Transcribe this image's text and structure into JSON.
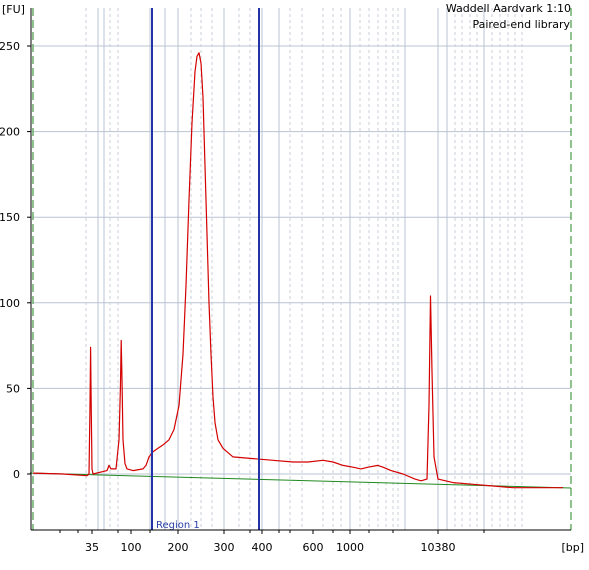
{
  "chart_data": {
    "type": "line",
    "title": "",
    "y_unit": "[FU]",
    "x_unit": "[bp]",
    "annotations": [
      "Waddell Aardvark 1:10",
      "Paired-end library"
    ],
    "ylim": [
      -33,
      258
    ],
    "y_ticks": [
      0,
      50,
      100,
      150,
      200,
      250
    ],
    "x_ticks": [
      {
        "label": "35",
        "bp": 35
      },
      {
        "label": "100",
        "bp": 100
      },
      {
        "label": "200",
        "bp": 200
      },
      {
        "label": "300",
        "bp": 300
      },
      {
        "label": "400",
        "bp": 400
      },
      {
        "label": "600",
        "bp": 600
      },
      {
        "label": "1000",
        "bp": 1000
      },
      {
        "label": "10380",
        "bp": 10380
      }
    ],
    "region": {
      "label": "Region 1",
      "start_bp": 150,
      "end_bp": 400
    },
    "grid": true,
    "colors": {
      "trace": "#d40000",
      "baseline": "#1f8a1f",
      "region": "#2233aa",
      "grid": "#b9c3d4",
      "grid_dashed": "#c8cfd9",
      "ladder_edge": "#1f8a1f"
    },
    "series": [
      {
        "values": [
          [
            0,
            0.5
          ],
          [
            30,
            0
          ],
          [
            54,
            -1
          ],
          [
            56,
            0
          ],
          [
            57,
            40
          ],
          [
            57.6,
            74
          ],
          [
            58.2,
            40
          ],
          [
            59,
            3
          ],
          [
            60,
            0
          ],
          [
            74,
            2
          ],
          [
            76,
            5
          ],
          [
            78,
            3
          ],
          [
            83,
            3
          ],
          [
            86,
            20
          ],
          [
            87.4,
            50
          ],
          [
            88.2,
            78
          ],
          [
            89,
            55
          ],
          [
            90,
            20
          ],
          [
            92,
            6
          ],
          [
            94,
            3
          ],
          [
            100,
            2
          ],
          [
            110,
            3
          ],
          [
            113,
            5
          ],
          [
            116,
            10
          ],
          [
            120,
            13
          ],
          [
            125,
            15
          ],
          [
            130,
            17
          ],
          [
            136,
            20
          ],
          [
            141,
            26
          ],
          [
            146,
            40
          ],
          [
            150,
            70
          ],
          [
            153,
            110
          ],
          [
            156,
            160
          ],
          [
            159,
            205
          ],
          [
            162,
            235
          ],
          [
            164,
            244
          ],
          [
            166,
            246
          ],
          [
            168,
            240
          ],
          [
            170,
            220
          ],
          [
            172,
            180
          ],
          [
            174,
            140
          ],
          [
            176,
            100
          ],
          [
            178,
            70
          ],
          [
            180,
            45
          ],
          [
            182,
            30
          ],
          [
            185,
            20
          ],
          [
            190,
            15
          ],
          [
            200,
            10
          ],
          [
            220,
            9
          ],
          [
            240,
            8
          ],
          [
            260,
            7
          ],
          [
            275,
            7
          ],
          [
            290,
            8
          ],
          [
            300,
            7
          ],
          [
            310,
            5
          ],
          [
            320,
            4
          ],
          [
            328,
            3
          ],
          [
            335,
            4
          ],
          [
            345,
            5
          ],
          [
            350,
            4
          ],
          [
            358,
            2
          ],
          [
            370,
            0
          ],
          [
            382,
            -3
          ],
          [
            388,
            -4
          ],
          [
            394,
            -3
          ],
          [
            396,
            40
          ],
          [
            397.5,
            104
          ],
          [
            399,
            60
          ],
          [
            401,
            10
          ],
          [
            405,
            -3
          ],
          [
            420,
            -5
          ],
          [
            440,
            -6
          ],
          [
            460,
            -7
          ],
          [
            480,
            -8
          ],
          [
            510,
            -8
          ],
          [
            530,
            -8
          ]
        ]
      }
    ]
  }
}
